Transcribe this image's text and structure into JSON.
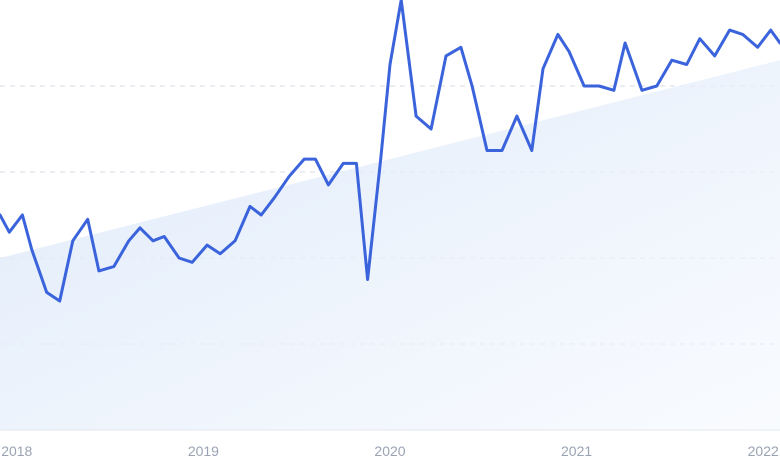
{
  "chart_data": {
    "type": "line",
    "title": "",
    "xlabel": "",
    "ylabel": "",
    "grid": true,
    "legend": "none",
    "x_ticks": [
      {
        "label": "2018",
        "x": 2018.0
      },
      {
        "label": "2019",
        "x": 2019.0
      },
      {
        "label": "2020",
        "x": 2020.0
      },
      {
        "label": "2021",
        "x": 2021.0
      },
      {
        "label": "2022",
        "x": 2022.0
      }
    ],
    "xlim": [
      2017.91,
      2022.09
    ],
    "ylim": [
      0,
      100
    ],
    "series": [
      {
        "color": "#3a63dc",
        "points": [
          [
            2017.91,
            50
          ],
          [
            2017.96,
            46
          ],
          [
            2018.03,
            50
          ],
          [
            2018.08,
            42
          ],
          [
            2018.16,
            32
          ],
          [
            2018.23,
            30
          ],
          [
            2018.3,
            44
          ],
          [
            2018.38,
            49
          ],
          [
            2018.44,
            37
          ],
          [
            2018.52,
            38
          ],
          [
            2018.6,
            44
          ],
          [
            2018.66,
            47
          ],
          [
            2018.73,
            44
          ],
          [
            2018.79,
            45
          ],
          [
            2018.87,
            40
          ],
          [
            2018.94,
            39
          ],
          [
            2019.02,
            43
          ],
          [
            2019.09,
            41
          ],
          [
            2019.17,
            44
          ],
          [
            2019.25,
            52
          ],
          [
            2019.31,
            50
          ],
          [
            2019.38,
            54
          ],
          [
            2019.46,
            59
          ],
          [
            2019.54,
            63
          ],
          [
            2019.6,
            63
          ],
          [
            2019.67,
            57
          ],
          [
            2019.75,
            62
          ],
          [
            2019.82,
            62
          ],
          [
            2019.88,
            35
          ],
          [
            2019.95,
            63
          ],
          [
            2020.0,
            85
          ],
          [
            2020.06,
            100
          ],
          [
            2020.14,
            73
          ],
          [
            2020.22,
            70
          ],
          [
            2020.3,
            87
          ],
          [
            2020.38,
            89
          ],
          [
            2020.44,
            80
          ],
          [
            2020.52,
            65
          ],
          [
            2020.6,
            65
          ],
          [
            2020.68,
            73
          ],
          [
            2020.76,
            65
          ],
          [
            2020.82,
            84
          ],
          [
            2020.9,
            92
          ],
          [
            2020.96,
            88
          ],
          [
            2021.04,
            80
          ],
          [
            2021.12,
            80
          ],
          [
            2021.2,
            79
          ],
          [
            2021.26,
            90
          ],
          [
            2021.35,
            79
          ],
          [
            2021.43,
            80
          ],
          [
            2021.51,
            86
          ],
          [
            2021.59,
            85
          ],
          [
            2021.66,
            91
          ],
          [
            2021.74,
            87
          ],
          [
            2021.82,
            93
          ],
          [
            2021.89,
            92
          ],
          [
            2021.97,
            89
          ],
          [
            2022.04,
            93
          ],
          [
            2022.09,
            90
          ]
        ]
      }
    ],
    "trend_band": {
      "color": "#dde9f8",
      "start": [
        2017.91,
        40
      ],
      "end": [
        2022.09,
        86
      ]
    }
  }
}
